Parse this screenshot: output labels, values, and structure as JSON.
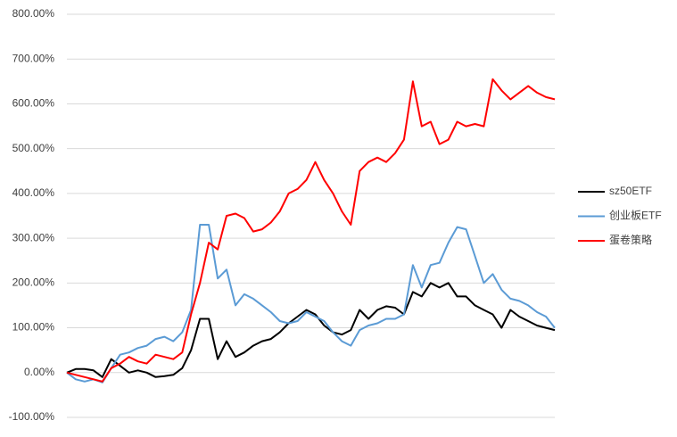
{
  "chart_data": {
    "type": "line",
    "ylim": [
      -100,
      800
    ],
    "yticks": [
      {
        "value": -100,
        "label": "-100.00%"
      },
      {
        "value": 0,
        "label": "0.00%"
      },
      {
        "value": 100,
        "label": "100.00%"
      },
      {
        "value": 200,
        "label": "200.00%"
      },
      {
        "value": 300,
        "label": "300.00%"
      },
      {
        "value": 400,
        "label": "400.00%"
      },
      {
        "value": 500,
        "label": "500.00%"
      },
      {
        "value": 600,
        "label": "600.00%"
      },
      {
        "value": 700,
        "label": "700.00%"
      },
      {
        "value": 800,
        "label": "800.00%"
      }
    ],
    "grid": true,
    "legend": "right",
    "series": [
      {
        "name": "sz50ETF",
        "color": "#000000",
        "values": [
          0,
          8,
          8,
          5,
          -10,
          30,
          15,
          0,
          5,
          0,
          -10,
          -8,
          -5,
          10,
          50,
          120,
          120,
          30,
          70,
          35,
          45,
          60,
          70,
          75,
          90,
          110,
          125,
          140,
          130,
          105,
          90,
          85,
          95,
          140,
          120,
          140,
          148,
          145,
          130,
          180,
          170,
          200,
          190,
          200,
          170,
          170,
          150,
          140,
          130,
          100,
          140,
          125,
          115,
          105,
          100,
          95
        ]
      },
      {
        "name": "创业板ETF",
        "color": "#5b9bd5",
        "values": [
          0,
          -15,
          -20,
          -15,
          -22,
          10,
          40,
          45,
          55,
          60,
          75,
          80,
          70,
          90,
          140,
          330,
          330,
          210,
          230,
          150,
          175,
          165,
          150,
          135,
          115,
          110,
          115,
          135,
          125,
          115,
          90,
          70,
          60,
          95,
          105,
          110,
          120,
          120,
          130,
          240,
          190,
          240,
          245,
          290,
          325,
          320,
          260,
          200,
          220,
          185,
          165,
          160,
          150,
          135,
          125,
          100
        ]
      },
      {
        "name": "蛋卷策略",
        "color": "#ff0000",
        "values": [
          0,
          -5,
          -10,
          -15,
          -20,
          10,
          20,
          35,
          25,
          20,
          40,
          35,
          30,
          45,
          130,
          200,
          290,
          275,
          350,
          355,
          345,
          315,
          320,
          335,
          360,
          400,
          410,
          430,
          470,
          430,
          400,
          360,
          330,
          450,
          470,
          480,
          470,
          490,
          520,
          650,
          550,
          560,
          510,
          520,
          560,
          550,
          555,
          550,
          655,
          630,
          610,
          625,
          640,
          625,
          615,
          610
        ]
      }
    ]
  }
}
